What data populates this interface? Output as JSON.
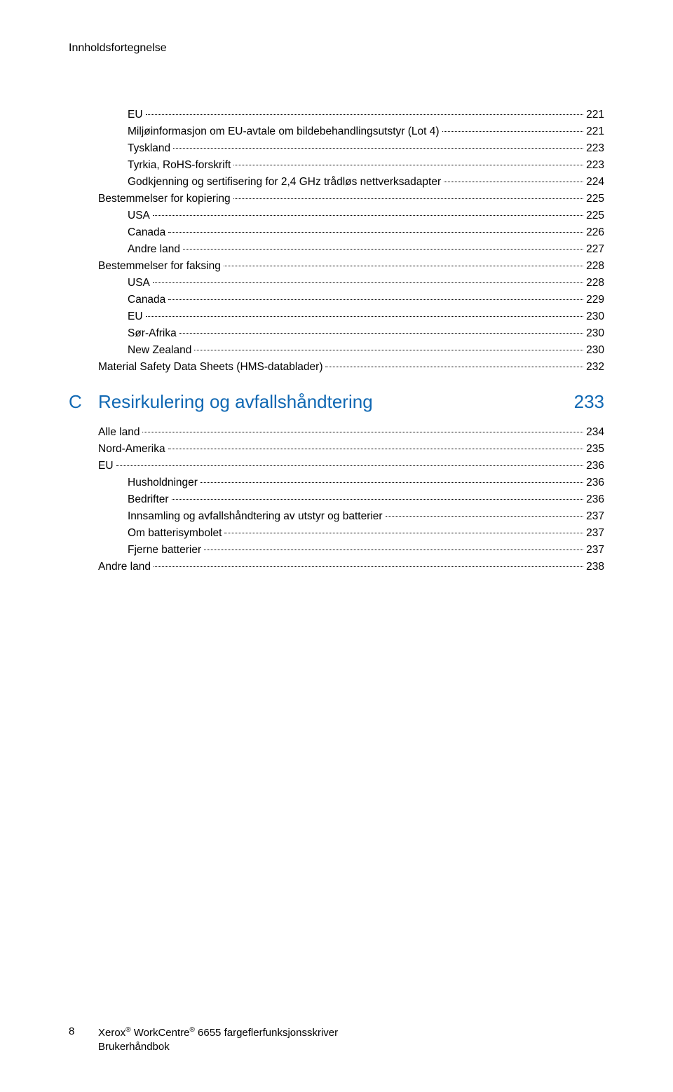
{
  "header": {
    "title": "Innholdsfortegnelse"
  },
  "toc_block_a": [
    {
      "indent": 2,
      "label": "EU",
      "page": "221"
    },
    {
      "indent": 2,
      "label": "Miljøinformasjon om EU-avtale om bildebehandlingsutstyr (Lot 4)",
      "page": "221"
    },
    {
      "indent": 2,
      "label": "Tyskland",
      "page": "223"
    },
    {
      "indent": 2,
      "label": "Tyrkia, RoHS-forskrift",
      "page": "223"
    },
    {
      "indent": 2,
      "label": "Godkjenning og sertifisering for 2,4 GHz trådløs nettverksadapter",
      "page": "224"
    },
    {
      "indent": 1,
      "label": "Bestemmelser for kopiering",
      "page": "225"
    },
    {
      "indent": 2,
      "label": "USA",
      "page": "225"
    },
    {
      "indent": 2,
      "label": "Canada",
      "page": "226"
    },
    {
      "indent": 2,
      "label": "Andre land",
      "page": "227"
    },
    {
      "indent": 1,
      "label": "Bestemmelser for faksing",
      "page": "228"
    },
    {
      "indent": 2,
      "label": "USA",
      "page": "228"
    },
    {
      "indent": 2,
      "label": "Canada",
      "page": "229"
    },
    {
      "indent": 2,
      "label": "EU",
      "page": "230"
    },
    {
      "indent": 2,
      "label": "Sør-Afrika",
      "page": "230"
    },
    {
      "indent": 2,
      "label": "New Zealand",
      "page": "230"
    },
    {
      "indent": 1,
      "label": "Material Safety Data Sheets (HMS-datablader)",
      "page": "232"
    }
  ],
  "appendix": {
    "letter": "C",
    "title": "Resirkulering og avfallshåndtering",
    "page": "233",
    "color": "#1068b3"
  },
  "toc_block_b": [
    {
      "indent": 1,
      "label": "Alle land",
      "page": "234"
    },
    {
      "indent": 1,
      "label": "Nord-Amerika",
      "page": "235"
    },
    {
      "indent": 1,
      "label": "EU",
      "page": "236"
    },
    {
      "indent": 2,
      "label": "Husholdninger",
      "page": "236"
    },
    {
      "indent": 2,
      "label": "Bedrifter",
      "page": "236"
    },
    {
      "indent": 2,
      "label": "Innsamling og avfallshåndtering av utstyr og batterier",
      "page": "237"
    },
    {
      "indent": 2,
      "label": "Om batterisymbolet",
      "page": "237"
    },
    {
      "indent": 2,
      "label": "Fjerne batterier",
      "page": "237"
    },
    {
      "indent": 1,
      "label": "Andre land",
      "page": "238"
    }
  ],
  "footer": {
    "page_number": "8",
    "line1_prefix": "Xerox",
    "line1_mid": " WorkCentre",
    "line1_suffix": " 6655 fargeflerfunksjonsskriver",
    "line2": "Brukerhåndbok",
    "registered": "®"
  },
  "colors": {
    "text": "#000000",
    "accent": "#1068b3",
    "background": "#ffffff"
  }
}
